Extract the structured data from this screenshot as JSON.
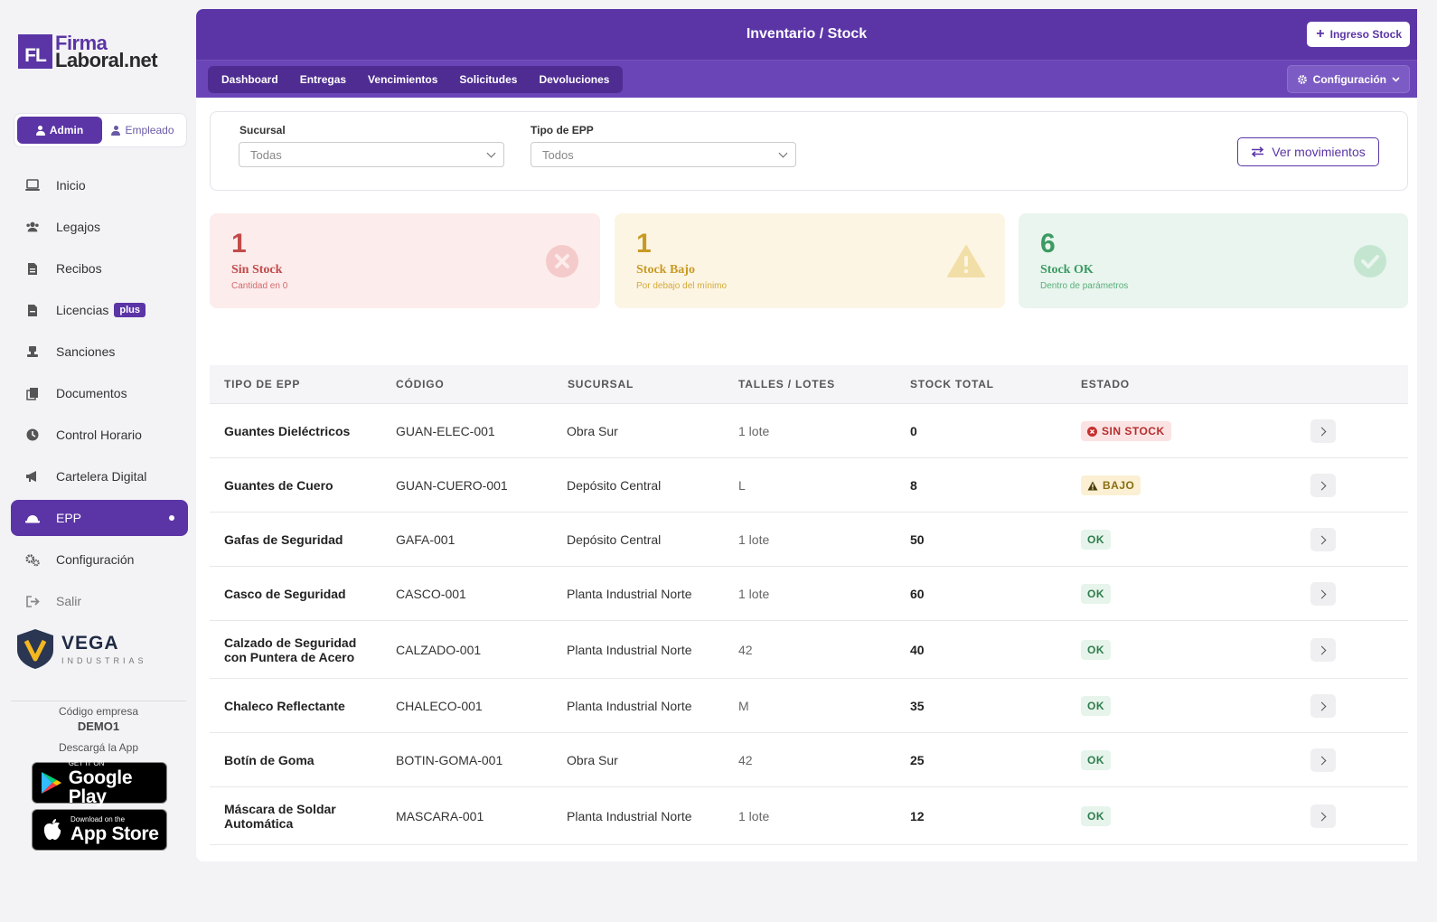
{
  "brand": {
    "mark": "FL",
    "line1": "Firma",
    "line2": "Laboral.net"
  },
  "roles": {
    "admin": "Admin",
    "employee": "Empleado"
  },
  "nav": [
    {
      "label": "Inicio",
      "icon": "laptop-icon"
    },
    {
      "label": "Legajos",
      "icon": "users-icon"
    },
    {
      "label": "Recibos",
      "icon": "receipt-icon"
    },
    {
      "label": "Licencias",
      "icon": "document-icon",
      "badge": "plus"
    },
    {
      "label": "Sanciones",
      "icon": "gavel-icon"
    },
    {
      "label": "Documentos",
      "icon": "copy-icon"
    },
    {
      "label": "Control Horario",
      "icon": "clock-icon"
    },
    {
      "label": "Cartelera Digital",
      "icon": "megaphone-icon"
    },
    {
      "label": "EPP",
      "icon": "helmet-icon",
      "active": true
    },
    {
      "label": "Configuración",
      "icon": "gears-icon"
    },
    {
      "label": "Salir",
      "icon": "logout-icon"
    }
  ],
  "company": {
    "name": "VEGA",
    "tagline": "INDUSTRIAS",
    "code_label": "Código empresa",
    "code": "DEMO1",
    "app_label": "Descargá la App"
  },
  "stores": {
    "google": {
      "small": "GET IT ON",
      "big": "Google Play"
    },
    "apple": {
      "small": "Download on the",
      "big": "App Store"
    }
  },
  "header": {
    "title": "Inventario / Stock",
    "ingreso_label": "Ingreso Stock",
    "tabs": [
      "Dashboard",
      "Entregas",
      "Vencimientos",
      "Solicitudes",
      "Devoluciones"
    ],
    "config_label": "Configuración"
  },
  "filters": {
    "sucursal_label": "Sucursal",
    "sucursal_value": "Todas",
    "tipo_label": "Tipo de EPP",
    "tipo_value": "Todos",
    "movements_label": "Ver movimientos"
  },
  "cards": {
    "sin_stock": {
      "count": "1",
      "title": "Sin Stock",
      "subtitle": "Cantidad en 0",
      "color": "#c24a4a"
    },
    "stock_bajo": {
      "count": "1",
      "title": "Stock Bajo",
      "subtitle": "Por debajo del mínimo",
      "color": "#c99a23"
    },
    "stock_ok": {
      "count": "6",
      "title": "Stock OK",
      "subtitle": "Dentro de parámetros",
      "color": "#3c9a63"
    }
  },
  "table": {
    "headers": [
      "TIPO DE EPP",
      "CÓDIGO",
      "SUCURSAL",
      "TALLES / LOTES",
      "STOCK TOTAL",
      "ESTADO"
    ],
    "rows": [
      {
        "name": "Guantes Dieléctricos",
        "code": "GUAN-ELEC-001",
        "branch": "Obra Sur",
        "sizes": "1 lote",
        "stock": "0",
        "status": "SIN STOCK",
        "kind": "sin"
      },
      {
        "name": "Guantes de Cuero",
        "code": "GUAN-CUERO-001",
        "branch": "Depósito Central",
        "sizes": "L",
        "stock": "8",
        "status": "BAJO",
        "kind": "bajo"
      },
      {
        "name": "Gafas de Seguridad",
        "code": "GAFA-001",
        "branch": "Depósito Central",
        "sizes": "1 lote",
        "stock": "50",
        "status": "OK",
        "kind": "ok"
      },
      {
        "name": "Casco de Seguridad",
        "code": "CASCO-001",
        "branch": "Planta Industrial Norte",
        "sizes": "1 lote",
        "stock": "60",
        "status": "OK",
        "kind": "ok"
      },
      {
        "name": "Calzado de Seguridad con Puntera de Acero",
        "code": "CALZADO-001",
        "branch": "Planta Industrial Norte",
        "sizes": "42",
        "stock": "40",
        "status": "OK",
        "kind": "ok"
      },
      {
        "name": "Chaleco Reflectante",
        "code": "CHALECO-001",
        "branch": "Planta Industrial Norte",
        "sizes": "M",
        "stock": "35",
        "status": "OK",
        "kind": "ok"
      },
      {
        "name": "Botín de Goma",
        "code": "BOTIN-GOMA-001",
        "branch": "Obra Sur",
        "sizes": "42",
        "stock": "25",
        "status": "OK",
        "kind": "ok"
      },
      {
        "name": "Máscara de Soldar Automática",
        "code": "MASCARA-001",
        "branch": "Planta Industrial Norte",
        "sizes": "1 lote",
        "stock": "12",
        "status": "OK",
        "kind": "ok"
      }
    ]
  }
}
